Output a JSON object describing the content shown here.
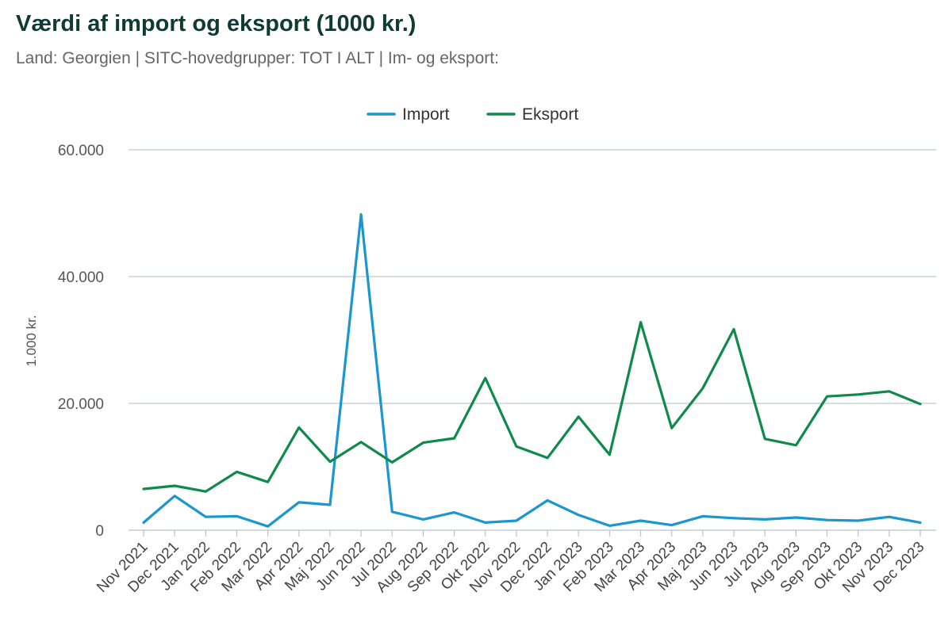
{
  "header": {
    "title": "Værdi af import og eksport (1000 kr.)",
    "subtitle": "Land: Georgien | SITC-hovedgrupper: TOT I ALT | Im- og eksport:"
  },
  "chart_data": {
    "type": "line",
    "title": "Værdi af import og eksport (1000 kr.)",
    "subtitle": "Land: Georgien | SITC-hovedgrupper: TOT I ALT | Im- og eksport:",
    "xlabel": "",
    "ylabel": "1.000 kr.",
    "ylim": [
      0,
      60000
    ],
    "yticks": [
      0,
      20000,
      40000,
      60000
    ],
    "ytick_labels": [
      "0",
      "20.000",
      "40.000",
      "60.000"
    ],
    "grid": true,
    "legend_position": "top-center",
    "categories": [
      "Nov 2021",
      "Dec 2021",
      "Jan 2022",
      "Feb 2022",
      "Mar 2022",
      "Apr 2022",
      "Maj 2022",
      "Jun 2022",
      "Jul 2022",
      "Aug 2022",
      "Sep 2022",
      "Okt 2022",
      "Nov 2022",
      "Dec 2022",
      "Jan 2023",
      "Feb 2023",
      "Mar 2023",
      "Apr 2023",
      "Maj 2023",
      "Jun 2023",
      "Jul 2023",
      "Aug 2023",
      "Sep 2023",
      "Okt 2023",
      "Nov 2023",
      "Dec 2023"
    ],
    "series": [
      {
        "name": "Import",
        "color": "#1a96d0",
        "values": [
          1200,
          5400,
          2100,
          2200,
          600,
          4400,
          4000,
          49800,
          2900,
          1700,
          2800,
          1200,
          1500,
          4700,
          2400,
          700,
          1500,
          800,
          2200,
          1900,
          1700,
          2000,
          1600,
          1500,
          2100,
          1200
        ]
      },
      {
        "name": "Eksport",
        "color": "#0e8a4a",
        "values": [
          6500,
          7000,
          6100,
          9200,
          7600,
          16200,
          10800,
          13900,
          10700,
          13800,
          14500,
          24000,
          13200,
          11400,
          17900,
          11900,
          32800,
          16100,
          22400,
          31700,
          14400,
          13400,
          21100,
          21400,
          21900,
          19900
        ]
      }
    ]
  }
}
